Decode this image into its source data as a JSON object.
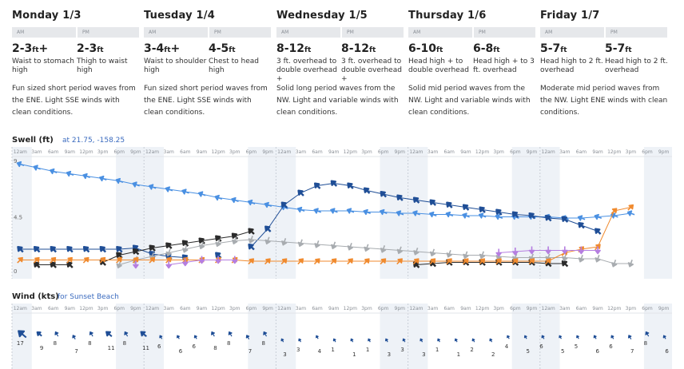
{
  "days": [
    {
      "title": "Monday 1/3",
      "am_label": "AM",
      "pm_label": "PM",
      "am": {
        "height": "2-3",
        "unit": "ft",
        "plus": "+",
        "desc": "Waist to stomach high"
      },
      "pm": {
        "height": "2-3",
        "unit": "ft",
        "plus": "",
        "desc": "Thigh to waist high"
      },
      "conditions": "Fun sized short period waves from the ENE. Light SSE winds with clean conditions."
    },
    {
      "title": "Tuesday 1/4",
      "am_label": "AM",
      "pm_label": "PM",
      "am": {
        "height": "3-4",
        "unit": "ft",
        "plus": "+",
        "desc": "Waist to shoulder high"
      },
      "pm": {
        "height": "4-5",
        "unit": "ft",
        "plus": "",
        "desc": "Chest to head high"
      },
      "conditions": "Fun sized short period waves from the ENE. Light SSE winds with clean conditions."
    },
    {
      "title": "Wednesday 1/5",
      "am_label": "AM",
      "pm_label": "PM",
      "am": {
        "height": "8-12",
        "unit": "ft",
        "plus": "",
        "desc": "3 ft. overhead to double overhead +"
      },
      "pm": {
        "height": "8-12",
        "unit": "ft",
        "plus": "",
        "desc": "3 ft. overhead to double overhead +"
      },
      "conditions": "Solid long period waves from the NW. Light and variable winds with clean conditions."
    },
    {
      "title": "Thursday 1/6",
      "am_label": "AM",
      "pm_label": "PM",
      "am": {
        "height": "6-10",
        "unit": "ft",
        "plus": "",
        "desc": "Head high + to double overhead"
      },
      "pm": {
        "height": "6-8",
        "unit": "ft",
        "plus": "",
        "desc": "Head high + to 3 ft. overhead"
      },
      "conditions": "Solid mid period waves from the NW. Light and variable winds with clean conditions."
    },
    {
      "title": "Friday 1/7",
      "am_label": "AM",
      "pm_label": "PM",
      "am": {
        "height": "5-7",
        "unit": "ft",
        "plus": "",
        "desc": "Head high to 2 ft. overhead"
      },
      "pm": {
        "height": "5-7",
        "unit": "ft",
        "plus": "",
        "desc": "Head high to 2 ft. overhead"
      },
      "conditions": "Moderate mid period waves from the NW. Light ENE winds with clean conditions."
    }
  ],
  "hour_labels": [
    "12am",
    "3am",
    "6am",
    "9am",
    "12pm",
    "3pm",
    "6pm",
    "9pm"
  ],
  "swell": {
    "title": "Swell (ft)",
    "location": "at 21.75, -158.25",
    "y_ticks": [
      "9",
      "4.5",
      "0"
    ],
    "colors": {
      "primary": "#4a90e2",
      "secondary": "#1f4e96",
      "tertiary": "#2b2b2b",
      "fourth": "#a8acb0",
      "fifth": "#f08a2e",
      "sixth": "#b57ee0"
    }
  },
  "wind": {
    "title": "Wind (kts)",
    "location": "for Sunset Beach",
    "values": [
      17,
      9,
      8,
      7,
      8,
      11,
      8,
      11,
      6,
      6,
      6,
      8,
      8,
      7,
      8,
      3,
      3,
      4,
      1,
      1,
      1,
      3,
      3,
      3,
      1,
      1,
      2,
      2,
      4,
      5,
      6,
      5,
      5,
      6,
      6,
      7,
      8,
      6
    ],
    "color": "#1f4e96"
  },
  "chart_data": [
    {
      "type": "line",
      "title": "Swell (ft)",
      "ylabel": "ft",
      "ylim": [
        0,
        9
      ],
      "series": [
        {
          "values": [
            8.9,
            8.6,
            8.3,
            8.1,
            7.9,
            7.7,
            7.5,
            7.2,
            7.0,
            6.8,
            6.6,
            6.4,
            6.1,
            5.9,
            5.7,
            5.5,
            5.3,
            5.1,
            5.0,
            5.0,
            5.0,
            4.9,
            4.9,
            4.8,
            4.8,
            4.7,
            4.7,
            4.6,
            4.6,
            4.5,
            4.5,
            4.5,
            4.5,
            4.4,
            4.4,
            4.5,
            4.6,
            4.8
          ]
        },
        {
          "values": [
            1.8,
            1.8,
            1.8,
            1.8,
            1.8,
            1.8,
            1.8,
            1.9,
            1.4,
            1.2,
            1.1,
            null,
            1.3,
            null,
            2.0,
            3.5,
            5.5,
            6.5,
            7.1,
            7.3,
            7.1,
            6.7,
            6.4,
            6.1,
            5.9,
            5.7,
            5.5,
            5.3,
            5.1,
            4.9,
            4.7,
            4.6,
            4.4,
            4.3,
            3.8,
            3.3,
            null,
            null
          ]
        },
        {
          "values": [
            null,
            0.5,
            0.5,
            0.5,
            null,
            0.7,
            1.3,
            1.6,
            1.9,
            2.1,
            2.3,
            2.5,
            2.7,
            2.9,
            3.3,
            null,
            null,
            null,
            null,
            null,
            null,
            null,
            null,
            null,
            0.5,
            0.6,
            0.7,
            0.7,
            0.7,
            0.7,
            0.7,
            0.7,
            0.6,
            0.6,
            null,
            null,
            null,
            null
          ]
        },
        {
          "values": [
            null,
            null,
            null,
            null,
            null,
            null,
            0.5,
            0.9,
            1.2,
            1.5,
            1.8,
            2.1,
            2.3,
            2.5,
            2.6,
            2.5,
            2.4,
            2.3,
            2.2,
            2.1,
            2.0,
            1.9,
            1.8,
            1.7,
            1.6,
            1.5,
            1.4,
            1.3,
            1.3,
            1.2,
            1.1,
            1.1,
            1.1,
            1.1,
            1.0,
            1.0,
            0.6,
            0.6
          ]
        },
        {
          "values": [
            0.9,
            0.9,
            0.9,
            0.9,
            0.9,
            0.9,
            0.9,
            0.9,
            0.9,
            0.9,
            0.9,
            0.9,
            0.9,
            0.9,
            0.8,
            0.8,
            0.8,
            0.8,
            0.8,
            0.8,
            0.8,
            0.8,
            0.8,
            0.8,
            0.8,
            0.8,
            0.8,
            0.8,
            0.8,
            0.8,
            0.8,
            0.8,
            0.8,
            1.5,
            1.8,
            2.0,
            5.0,
            5.3
          ]
        },
        {
          "values": [
            null,
            null,
            null,
            null,
            null,
            null,
            null,
            0.5,
            null,
            0.5,
            0.7,
            0.9,
            0.9,
            0.9,
            null,
            null,
            null,
            null,
            null,
            null,
            null,
            null,
            null,
            null,
            null,
            null,
            null,
            null,
            null,
            1.5,
            1.6,
            1.7,
            1.7,
            1.7,
            1.7,
            1.7,
            null,
            null
          ]
        }
      ]
    },
    {
      "type": "bar",
      "title": "Wind (kts)",
      "ylabel": "kts",
      "series": [
        {
          "values": [
            17,
            9,
            8,
            7,
            8,
            11,
            8,
            11,
            6,
            6,
            6,
            8,
            8,
            7,
            8,
            3,
            3,
            4,
            1,
            1,
            1,
            3,
            3,
            3,
            1,
            1,
            2,
            2,
            4,
            5,
            6,
            5,
            5,
            6,
            6,
            7,
            8,
            6
          ]
        }
      ]
    }
  ]
}
